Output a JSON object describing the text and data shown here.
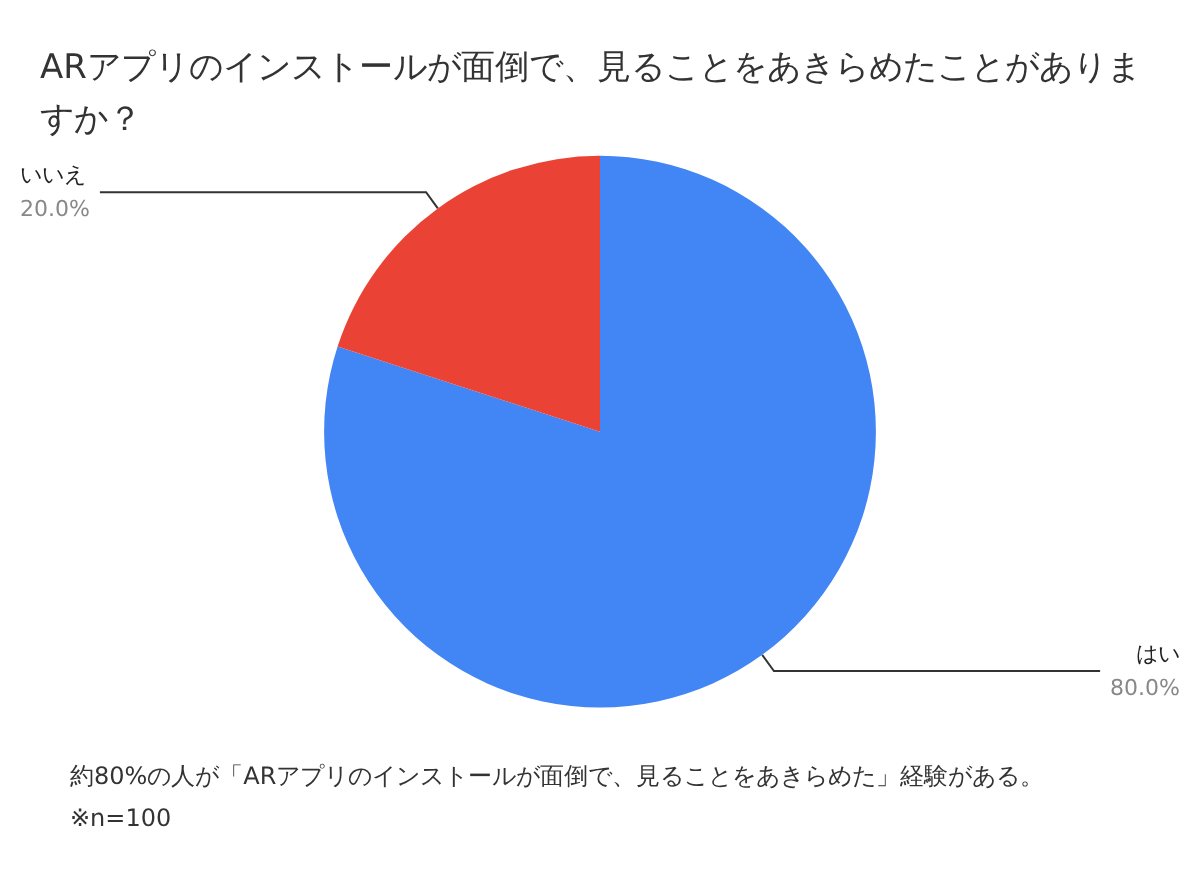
{
  "chart_data": {
    "type": "pie",
    "title": "ARアプリのインストールが面倒で、見ることをあきらめたことがありますか？",
    "categories": [
      "はい",
      "いいえ"
    ],
    "values": [
      80,
      20
    ],
    "value_labels": [
      "80.0%",
      "20.0%"
    ],
    "colors": [
      "#4285f4",
      "#ea4335"
    ],
    "legend": false,
    "annotations": [
      "約80%の人が「ARアプリのインストールが面倒で、見ることをあきらめた」経験がある。",
      "※n=100"
    ]
  }
}
